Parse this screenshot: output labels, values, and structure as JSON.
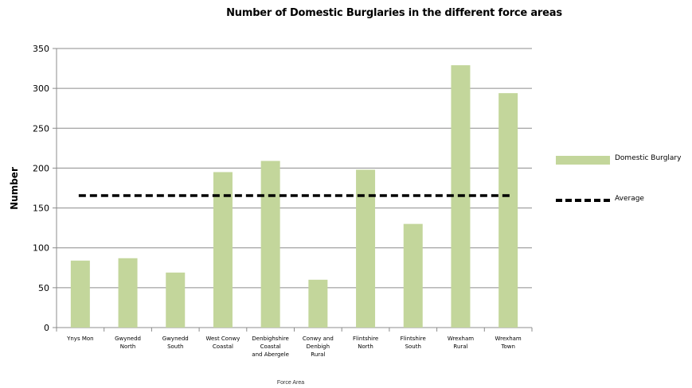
{
  "chart_data": {
    "type": "bar",
    "title": "Number of Domestic Burglaries in the different force areas",
    "xlabel": "Force Area",
    "ylabel": "Number",
    "ylim": [
      0,
      350
    ],
    "yticks": [
      0,
      50,
      100,
      150,
      200,
      250,
      300,
      350
    ],
    "grid": true,
    "legend_position": "right",
    "categories": [
      [
        "Ynys Mon"
      ],
      [
        "Gwynedd",
        "North"
      ],
      [
        "Gwynedd",
        "South"
      ],
      [
        "West Conwy",
        "Coastal"
      ],
      [
        "Denbighshire",
        "Coastal",
        "and Abergele"
      ],
      [
        "Conwy and",
        "Denbigh",
        "Rural"
      ],
      [
        "Flintshire",
        "North"
      ],
      [
        "Flintshire",
        "South"
      ],
      [
        "Wrexham",
        "Rural"
      ],
      [
        "Wrexham",
        "Town"
      ]
    ],
    "series": [
      {
        "name": "Domestic Burglary",
        "type": "bar",
        "color": "#c3d69b",
        "values": [
          84,
          87,
          69,
          195,
          209,
          60,
          198,
          130,
          329,
          294
        ]
      },
      {
        "name": "Average",
        "type": "line",
        "style": "dashed",
        "color": "#000000",
        "values": [
          165.5,
          165.5,
          165.5,
          165.5,
          165.5,
          165.5,
          165.5,
          165.5,
          165.5,
          165.5
        ]
      }
    ]
  }
}
